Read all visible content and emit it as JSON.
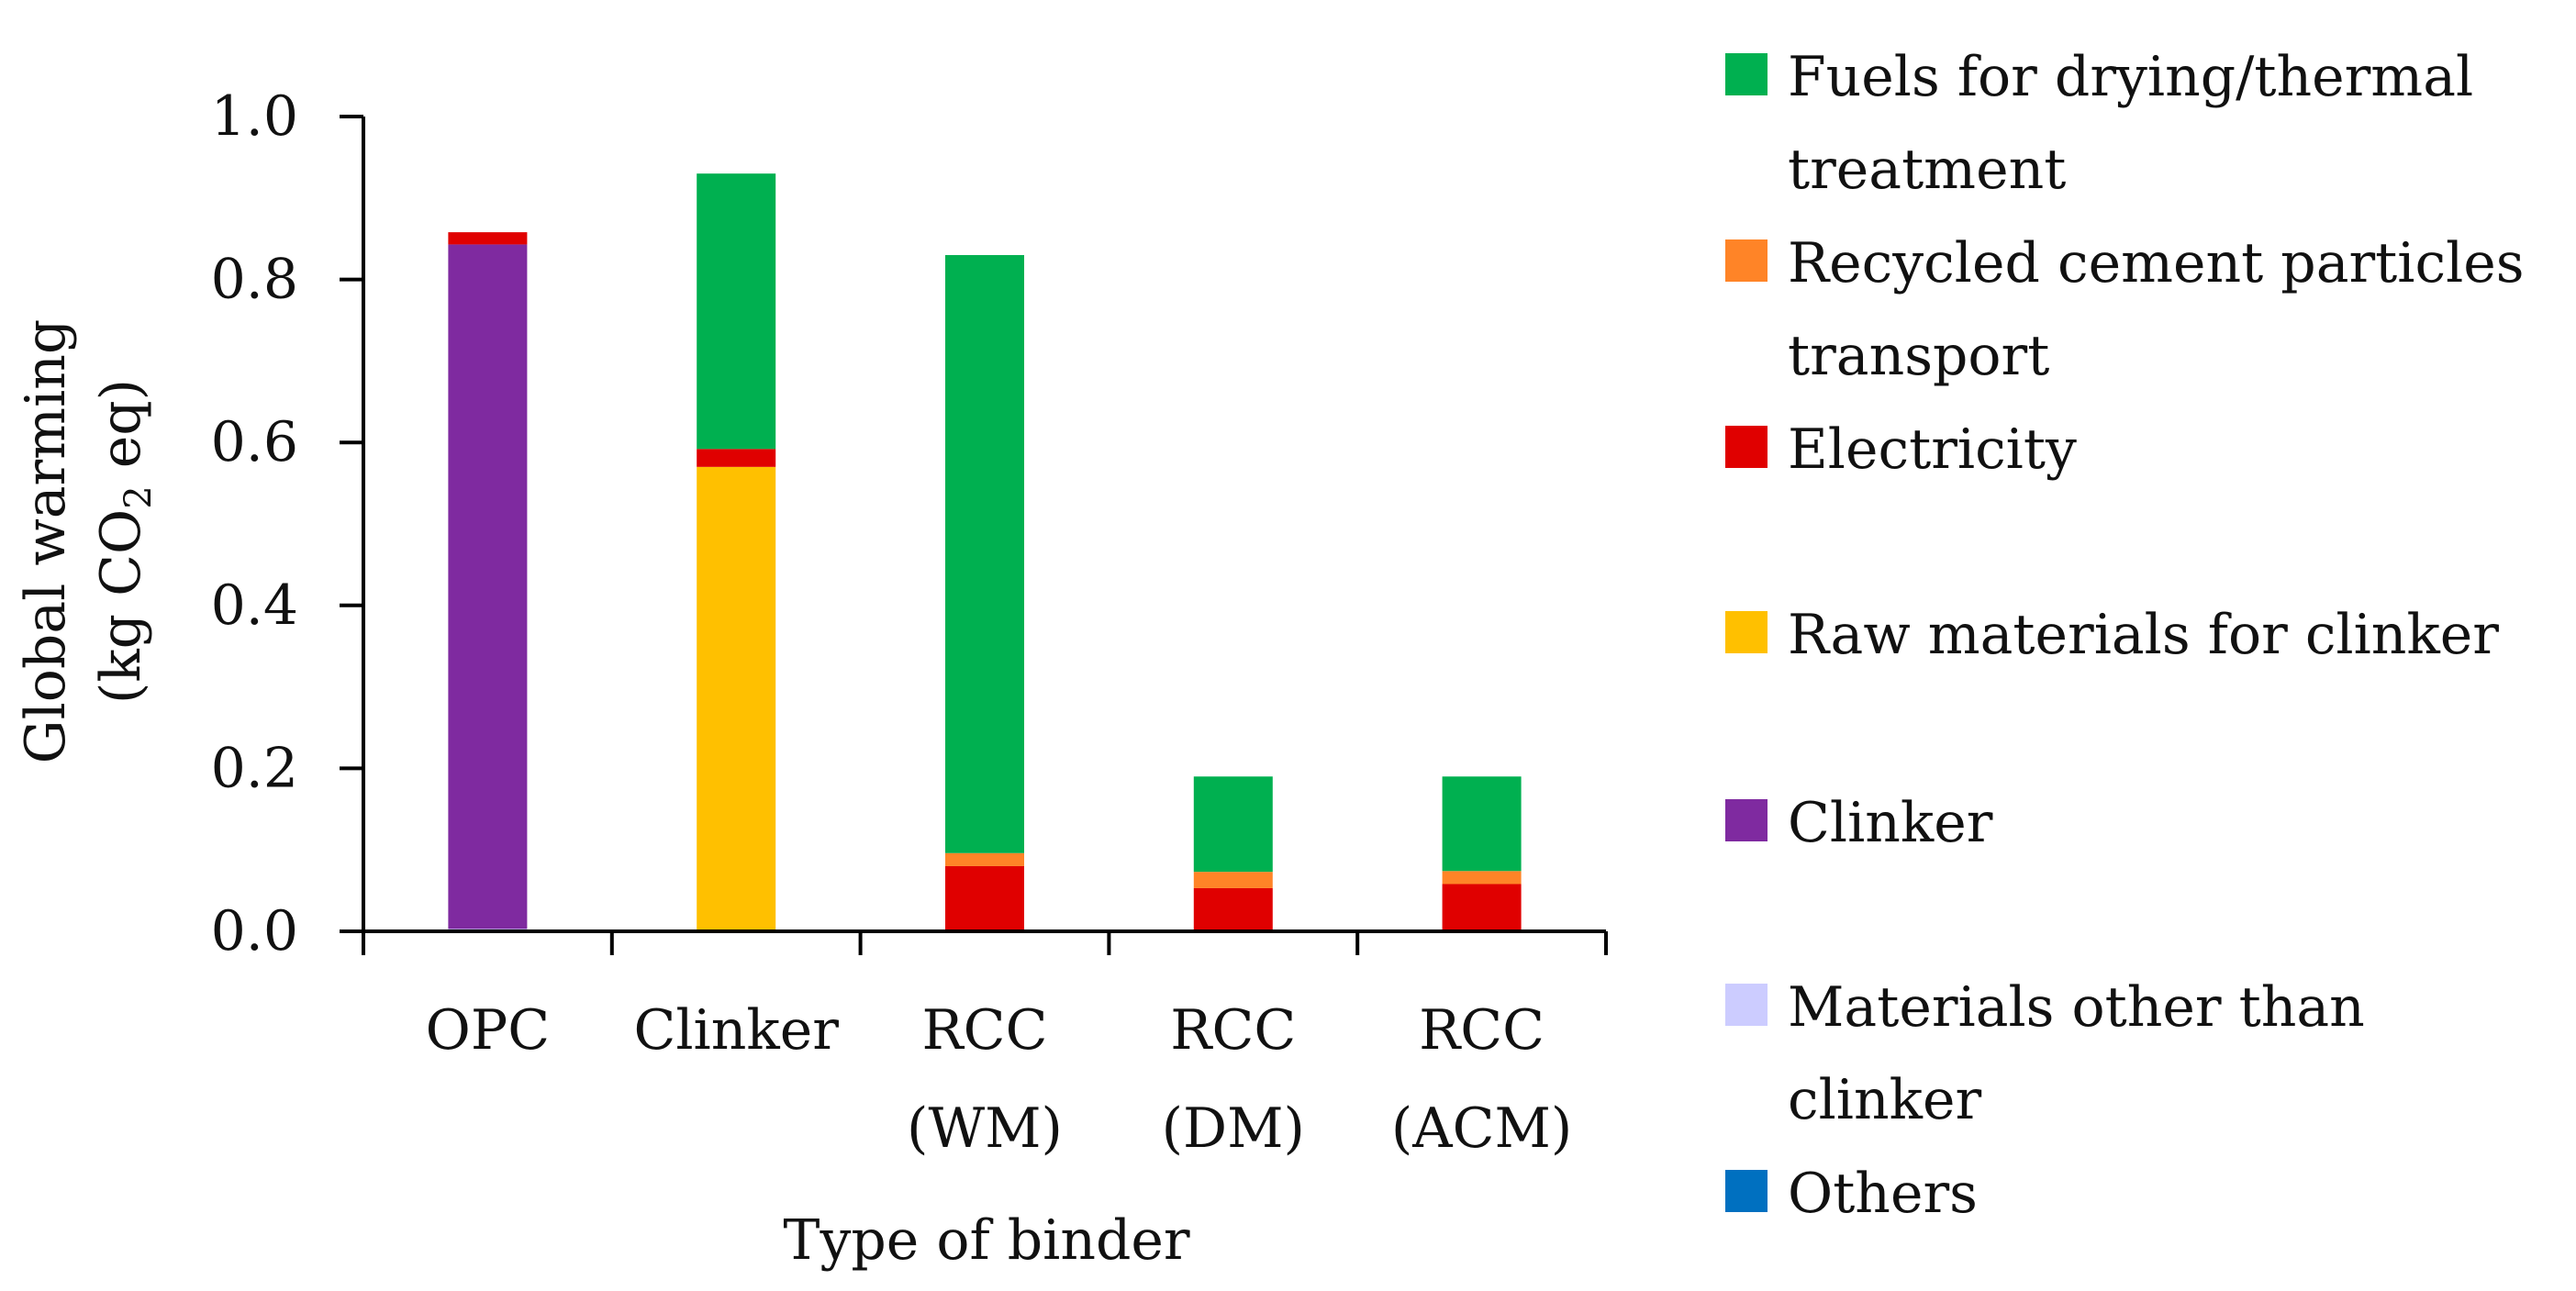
{
  "chart_data": {
    "type": "bar",
    "stacked": true,
    "title": "",
    "xlabel": "Type of binder",
    "ylabel": {
      "line1": "Global warming",
      "line2_prefix": "(kg CO",
      "line2_subscript": "2",
      "line2_suffix": " eq)"
    },
    "ylim": [
      0,
      1.0
    ],
    "yticks": [
      "0.0",
      "0.2",
      "0.4",
      "0.6",
      "0.8",
      "1.0"
    ],
    "grid": false,
    "legend_position": "right",
    "categories": [
      {
        "line1": "OPC",
        "line2": ""
      },
      {
        "line1": "Clinker",
        "line2": ""
      },
      {
        "line1": "RCC",
        "line2": "(WM)"
      },
      {
        "line1": "RCC",
        "line2": "(DM)"
      },
      {
        "line1": "RCC",
        "line2": "(ACM)"
      }
    ],
    "series": [
      {
        "name": "Others",
        "legend_lines": [
          "Others"
        ],
        "color": "#0070C0",
        "values": [
          0,
          0,
          0,
          0,
          0
        ]
      },
      {
        "name": "Materials other than clinker",
        "legend_lines": [
          "Materials other than",
          "clinker"
        ],
        "color": "#CCCCFF",
        "values": [
          0.003,
          0,
          0,
          0,
          0
        ]
      },
      {
        "name": "Clinker",
        "legend_lines": [
          "Clinker"
        ],
        "color": "#7F2AA0",
        "values": [
          0.84,
          0,
          0,
          0,
          0
        ]
      },
      {
        "name": "Raw materials for clinker",
        "legend_lines": [
          "Raw materials for clinker"
        ],
        "color": "#FFC000",
        "values": [
          0,
          0.57,
          0,
          0,
          0
        ]
      },
      {
        "name": "Electricity",
        "legend_lines": [
          "Electricity"
        ],
        "color": "#E00000",
        "values": [
          0.015,
          0.022,
          0.08,
          0.053,
          0.058
        ]
      },
      {
        "name": "Recycled cement particles transport",
        "legend_lines": [
          "Recycled cement particles",
          "transport"
        ],
        "color": "#FF8427",
        "values": [
          0,
          0,
          0.016,
          0.02,
          0.016
        ]
      },
      {
        "name": "Fuels for drying/thermal treatment",
        "legend_lines": [
          "Fuels for drying/thermal",
          "treatment"
        ],
        "color": "#00B050",
        "values": [
          0,
          0.338,
          0.734,
          0.117,
          0.116
        ]
      }
    ]
  }
}
